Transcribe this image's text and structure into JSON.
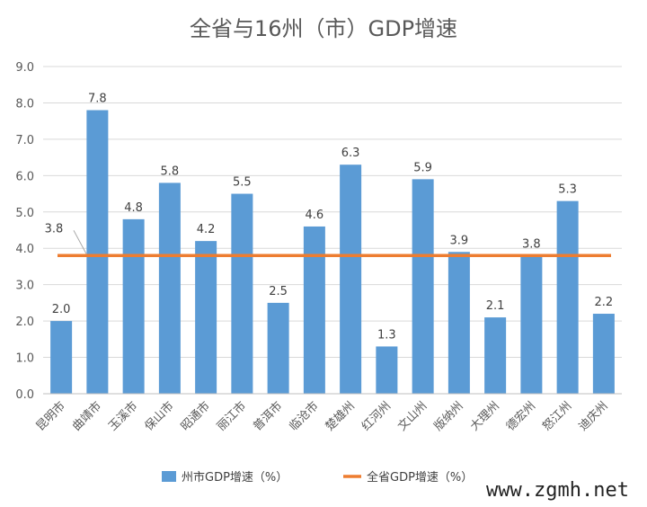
{
  "colors": {
    "bar": "#5b9bd5",
    "line": "#ed7d31",
    "grid": "#d9d9d9",
    "axis": "#bfbfbf",
    "text": "#595959"
  },
  "chart_data": {
    "type": "bar",
    "title": "全省与16州（市）GDP增速",
    "xlabel": "",
    "ylabel": "",
    "ylim": [
      0,
      9
    ],
    "yticks": [
      "0.0",
      "1.0",
      "2.0",
      "3.0",
      "4.0",
      "5.0",
      "6.0",
      "7.0",
      "8.0",
      "9.0"
    ],
    "categories": [
      "昆明市",
      "曲靖市",
      "玉溪市",
      "保山市",
      "昭通市",
      "丽江市",
      "普洱市",
      "临沧市",
      "楚雄州",
      "红河州",
      "文山州",
      "版纳州",
      "大理州",
      "德宏州",
      "怒江州",
      "迪庆州"
    ],
    "series": [
      {
        "name": "州市GDP增速（%）",
        "type": "bar",
        "values": [
          2.0,
          7.8,
          4.8,
          5.8,
          4.2,
          5.5,
          2.5,
          4.6,
          6.3,
          1.3,
          5.9,
          3.9,
          2.1,
          3.8,
          5.3,
          2.2
        ],
        "labels": [
          "2.0",
          "7.8",
          "4.8",
          "5.8",
          "4.2",
          "5.5",
          "2.5",
          "4.6",
          "6.3",
          "1.3",
          "5.9",
          "3.9",
          "2.1",
          "3.8",
          "5.3",
          "2.2"
        ]
      },
      {
        "name": "全省GDP增速（%）",
        "type": "line",
        "value": 3.8,
        "label": "3.8"
      }
    ],
    "legend_position": "bottom"
  },
  "watermark": "www.zgmh.net"
}
